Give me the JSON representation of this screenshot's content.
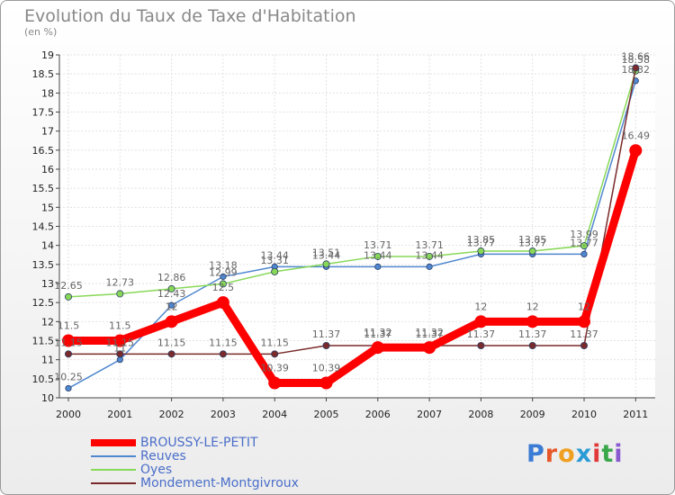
{
  "chart_data": {
    "type": "line",
    "title": "Evolution du Taux de Taxe d'Habitation",
    "ylabel": "(en %)",
    "xlabel": "",
    "categories": [
      "2000",
      "2001",
      "2002",
      "2003",
      "2004",
      "2005",
      "2006",
      "2007",
      "2008",
      "2009",
      "2010",
      "2011"
    ],
    "ylim": [
      10,
      19
    ],
    "yticks": [
      "10",
      "10.5",
      "11",
      "11.5",
      "12",
      "12.5",
      "13",
      "13.5",
      "14",
      "14.5",
      "15",
      "15.5",
      "16",
      "16.5",
      "17",
      "17.5",
      "18",
      "18.5",
      "19"
    ],
    "grid": true,
    "series": [
      {
        "name": "BROUSSY-LE-PETIT",
        "color": "#ff0000",
        "values": [
          11.5,
          11.5,
          12,
          12.5,
          10.39,
          10.39,
          11.32,
          11.32,
          12,
          12,
          12,
          16.49
        ],
        "labels": [
          "11.5",
          "11.5",
          "12",
          "12.5",
          "10.39",
          "10.39",
          "11.32",
          "11.32",
          "12",
          "12",
          "12",
          "16.49"
        ]
      },
      {
        "name": "Reuves",
        "color": "#4f87d0",
        "values": [
          10.25,
          11,
          12.43,
          13.18,
          13.44,
          13.44,
          13.44,
          13.44,
          13.77,
          13.77,
          13.77,
          18.32
        ],
        "labels": [
          "10.25",
          "11",
          "12.43",
          "13.18",
          "13.44",
          "13.44",
          "13.44",
          "13.44",
          "13.77",
          "13.77",
          "13.77",
          "18.32"
        ]
      },
      {
        "name": "Oyes",
        "color": "#88d858",
        "values": [
          12.65,
          12.73,
          12.86,
          12.99,
          13.31,
          13.51,
          13.71,
          13.71,
          13.85,
          13.85,
          13.99,
          18.58
        ],
        "labels": [
          "12.65",
          "12.73",
          "12.86",
          "12.99",
          "13.31",
          "13.51",
          "13.71",
          "13.71",
          "13.85",
          "13.85",
          "13.99",
          "18.58"
        ]
      },
      {
        "name": "Mondement-Montgivroux",
        "color": "#7a2a2a",
        "values": [
          11.15,
          11.15,
          11.15,
          11.15,
          11.15,
          11.37,
          11.37,
          11.37,
          11.37,
          11.37,
          11.37,
          18.66
        ],
        "labels": [
          "11.15",
          "11.15",
          "11.15",
          "11.15",
          "11.15",
          "11.37",
          "11.37",
          "11.37",
          "11.37",
          "11.37",
          "11.37",
          "18.66"
        ]
      }
    ]
  },
  "logo": {
    "text": "Proxiti"
  }
}
